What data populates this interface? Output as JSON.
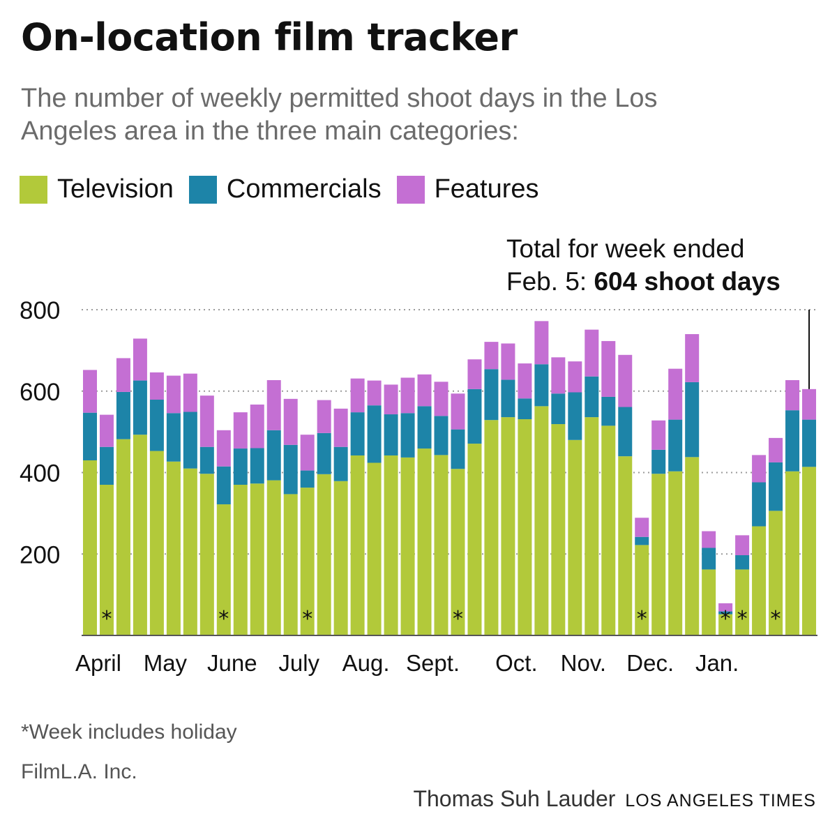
{
  "title": "On-location film tracker",
  "subtitle": "The number of weekly permitted shoot days in the Los Angeles area in the three main categories:",
  "legend": [
    {
      "label": "Television",
      "color": "#b2c93a"
    },
    {
      "label": "Commercials",
      "color": "#1d84a8"
    },
    {
      "label": "Features",
      "color": "#c46fd3"
    }
  ],
  "annotation": {
    "line1": "Total for week ended",
    "line2_prefix": "Feb. 5: ",
    "line2_bold": "604 shoot days"
  },
  "footnote": "*Week includes holiday",
  "source": "FilmL.A. Inc.",
  "credit": {
    "author": "Thomas Suh Lauder",
    "org": "LOS ANGELES TIMES"
  },
  "chart_data": {
    "type": "bar",
    "stacked": true,
    "ylim": [
      0,
      800
    ],
    "yticks": [
      200,
      400,
      600,
      800
    ],
    "grid": true,
    "month_labels": [
      "April",
      "May",
      "June",
      "July",
      "Aug.",
      "Sept.",
      "Oct.",
      "Nov.",
      "Dec.",
      "Jan."
    ],
    "month_label_weeks": [
      1,
      5,
      9,
      13,
      17,
      21,
      26,
      30,
      34,
      38
    ],
    "holiday_marker": "*",
    "holiday_weeks": [
      1,
      8,
      13,
      22,
      33,
      38,
      39,
      41
    ],
    "series": [
      {
        "name": "Television",
        "color": "#b2c93a",
        "values": [
          430,
          370,
          482,
          493,
          453,
          427,
          410,
          397,
          322,
          370,
          373,
          381,
          347,
          363,
          396,
          379,
          442,
          424,
          442,
          437,
          459,
          443,
          409,
          471,
          529,
          536,
          531,
          563,
          519,
          480,
          536,
          515,
          440,
          222,
          397,
          403,
          438,
          162,
          52,
          162,
          268,
          306,
          403,
          414
        ]
      },
      {
        "name": "Commercials",
        "color": "#1d84a8",
        "values": [
          117,
          93,
          116,
          133,
          126,
          119,
          139,
          66,
          93,
          89,
          87,
          123,
          121,
          42,
          101,
          84,
          106,
          141,
          101,
          109,
          104,
          96,
          97,
          134,
          125,
          92,
          51,
          103,
          75,
          117,
          100,
          71,
          121,
          20,
          59,
          127,
          184,
          53,
          7,
          35,
          108,
          119,
          150,
          116
        ]
      },
      {
        "name": "Features",
        "color": "#c46fd3",
        "values": [
          105,
          79,
          83,
          103,
          67,
          92,
          94,
          126,
          89,
          89,
          107,
          123,
          113,
          88,
          81,
          94,
          83,
          61,
          73,
          87,
          78,
          84,
          88,
          73,
          67,
          89,
          86,
          106,
          89,
          76,
          115,
          137,
          128,
          47,
          72,
          125,
          118,
          41,
          20,
          49,
          67,
          60,
          74,
          75
        ]
      }
    ]
  }
}
